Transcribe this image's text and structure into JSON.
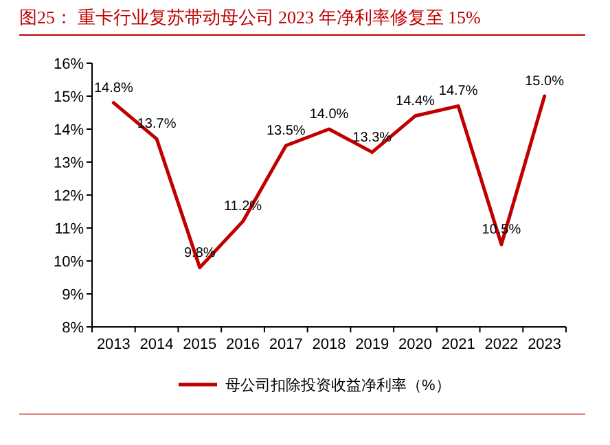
{
  "chart_data": {
    "type": "line",
    "title": "图25：  重卡行业复苏带动母公司 2023 年净利率修复至 15%",
    "categories": [
      "2013",
      "2014",
      "2015",
      "2016",
      "2017",
      "2018",
      "2019",
      "2020",
      "2021",
      "2022",
      "2023"
    ],
    "series": [
      {
        "name": "母公司扣除投资收益净利率（%）",
        "color": "#c00000",
        "values": [
          14.8,
          13.7,
          9.8,
          11.2,
          13.5,
          14.0,
          13.3,
          14.4,
          14.7,
          10.5,
          15.0
        ],
        "value_labels": [
          "14.8%",
          "13.7%",
          "9.8%",
          "11.2%",
          "13.5%",
          "14.0%",
          "13.3%",
          "14.4%",
          "14.7%",
          "10.5%",
          "15.0%"
        ]
      }
    ],
    "ylim": [
      8,
      16
    ],
    "yticks": [
      {
        "value": 8,
        "label": "8%"
      },
      {
        "value": 9,
        "label": "9%"
      },
      {
        "value": 10,
        "label": "10%"
      },
      {
        "value": 11,
        "label": "11%"
      },
      {
        "value": 12,
        "label": "12%"
      },
      {
        "value": 13,
        "label": "13%"
      },
      {
        "value": 14,
        "label": "14%"
      },
      {
        "value": 15,
        "label": "15%"
      },
      {
        "value": 16,
        "label": "16%"
      }
    ],
    "grid": false,
    "legend": "bottom",
    "marker": "none",
    "line_style": "solid"
  }
}
